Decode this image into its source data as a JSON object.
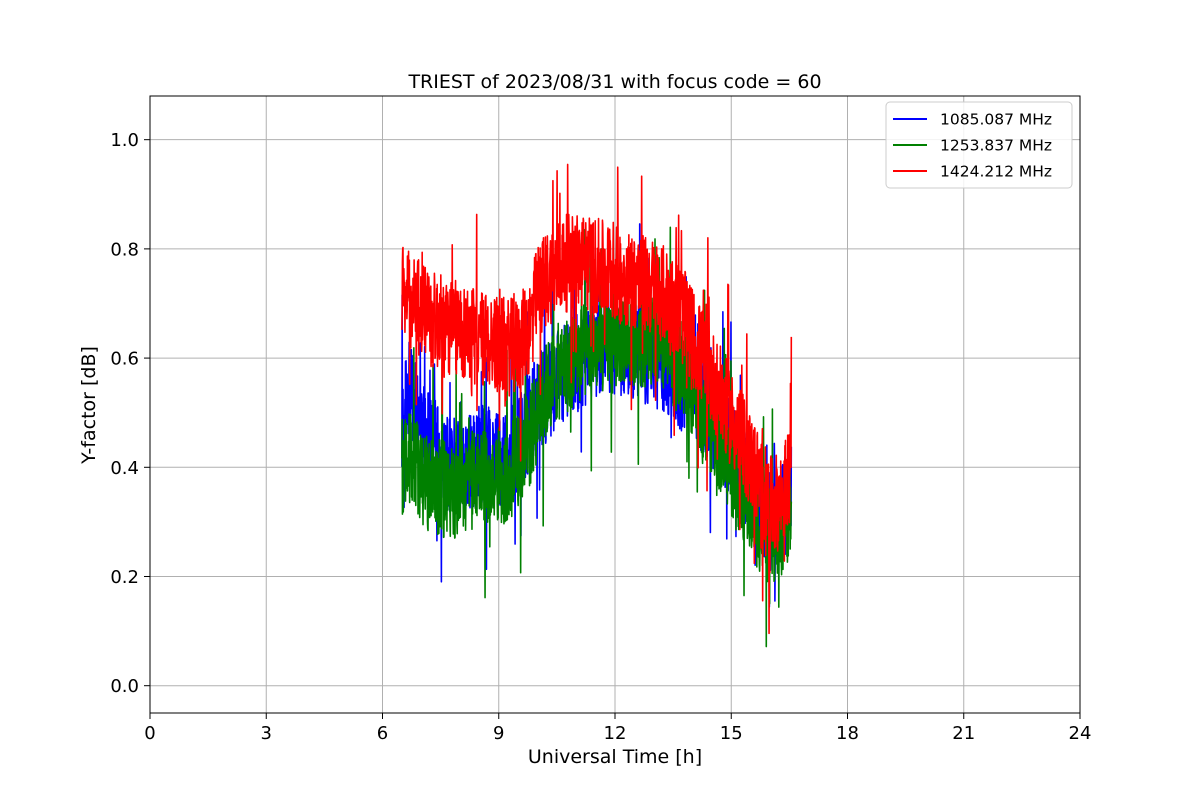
{
  "chart_data": {
    "type": "line",
    "title": "TRIEST of 2023/08/31 with focus code = 60",
    "xlabel": "Universal Time [h]",
    "ylabel": "Y-factor [dB]",
    "xlim": [
      0,
      24
    ],
    "ylim": [
      -0.05,
      1.08
    ],
    "xticks": [
      0,
      3,
      6,
      9,
      12,
      15,
      18,
      21,
      24
    ],
    "xtick_labels": [
      "0",
      "3",
      "6",
      "9",
      "12",
      "15",
      "18",
      "21",
      "24"
    ],
    "yticks": [
      0.0,
      0.2,
      0.4,
      0.6,
      0.8,
      1.0
    ],
    "ytick_labels": [
      "0.0",
      "0.2",
      "0.4",
      "0.6",
      "0.8",
      "1.0"
    ],
    "grid": true,
    "legend_position": "top-right",
    "series": [
      {
        "name": "1085.087 MHz",
        "color": "#0000ff",
        "x": [
          6.5,
          6.7,
          7.0,
          7.3,
          7.6,
          8.0,
          8.4,
          8.8,
          9.2,
          9.5,
          9.8,
          10.0,
          10.3,
          10.6,
          11.0,
          11.4,
          11.8,
          12.2,
          12.6,
          13.0,
          13.4,
          13.8,
          14.2,
          14.6,
          15.0,
          15.4,
          15.7,
          16.0,
          16.3,
          16.55
        ],
        "y": [
          0.48,
          0.55,
          0.47,
          0.44,
          0.41,
          0.4,
          0.42,
          0.43,
          0.41,
          0.44,
          0.48,
          0.52,
          0.54,
          0.57,
          0.59,
          0.61,
          0.62,
          0.62,
          0.61,
          0.6,
          0.58,
          0.55,
          0.52,
          0.48,
          0.43,
          0.38,
          0.33,
          0.3,
          0.32,
          0.36
        ]
      },
      {
        "name": "1253.837 MHz",
        "color": "#008000",
        "x": [
          6.5,
          6.7,
          7.0,
          7.3,
          7.6,
          8.0,
          8.4,
          8.8,
          9.2,
          9.5,
          9.8,
          10.0,
          10.3,
          10.6,
          11.0,
          11.4,
          11.8,
          12.2,
          12.6,
          13.0,
          13.4,
          13.8,
          14.2,
          14.6,
          15.0,
          15.4,
          15.7,
          16.0,
          16.3,
          16.55
        ],
        "y": [
          0.4,
          0.42,
          0.38,
          0.37,
          0.36,
          0.36,
          0.38,
          0.39,
          0.38,
          0.42,
          0.45,
          0.5,
          0.55,
          0.58,
          0.6,
          0.62,
          0.63,
          0.64,
          0.64,
          0.63,
          0.61,
          0.57,
          0.52,
          0.46,
          0.4,
          0.34,
          0.3,
          0.27,
          0.29,
          0.33
        ]
      },
      {
        "name": "1424.212 MHz",
        "color": "#ff0000",
        "x": [
          6.5,
          6.7,
          7.0,
          7.3,
          7.6,
          8.0,
          8.4,
          8.8,
          9.2,
          9.5,
          9.8,
          10.0,
          10.3,
          10.6,
          11.0,
          11.4,
          11.8,
          12.2,
          12.6,
          13.0,
          13.4,
          13.8,
          14.2,
          14.6,
          15.0,
          15.4,
          15.7,
          16.0,
          16.3,
          16.55
        ],
        "y": [
          0.72,
          0.71,
          0.69,
          0.67,
          0.66,
          0.65,
          0.64,
          0.63,
          0.62,
          0.62,
          0.66,
          0.72,
          0.75,
          0.77,
          0.78,
          0.77,
          0.76,
          0.75,
          0.74,
          0.73,
          0.71,
          0.67,
          0.61,
          0.55,
          0.49,
          0.43,
          0.38,
          0.33,
          0.34,
          0.4
        ]
      }
    ]
  }
}
